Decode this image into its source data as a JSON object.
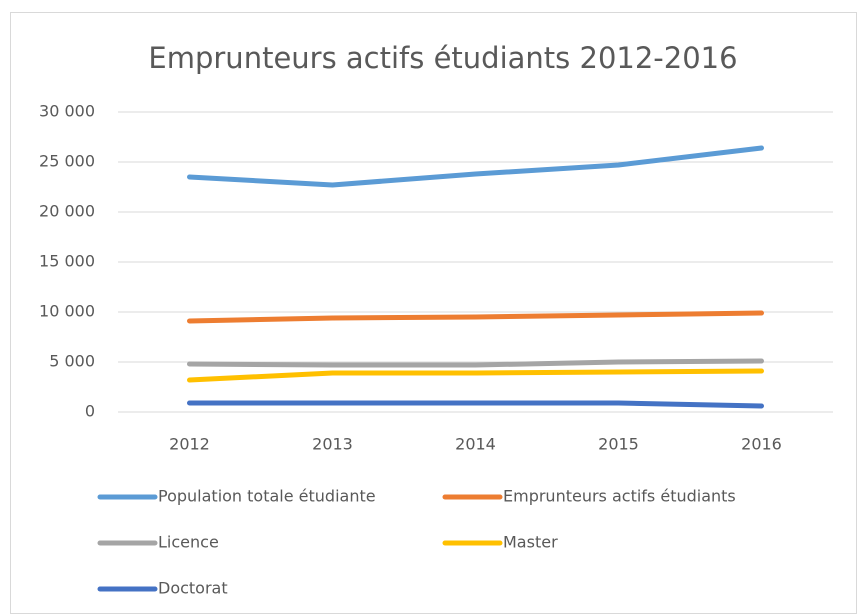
{
  "chart_data": {
    "type": "line",
    "title": "Emprunteurs actifs étudiants 2012-2016",
    "categories": [
      "2012",
      "2013",
      "2014",
      "2015",
      "2016"
    ],
    "series": [
      {
        "name": "Population totale étudiante",
        "color": "#5b9bd5",
        "values": [
          23500,
          22700,
          23800,
          24700,
          26400
        ]
      },
      {
        "name": "Emprunteurs actifs étudiants",
        "color": "#ed7d31",
        "values": [
          9100,
          9400,
          9500,
          9700,
          9900
        ]
      },
      {
        "name": "Licence",
        "color": "#a5a5a5",
        "values": [
          4800,
          4700,
          4700,
          5000,
          5100
        ]
      },
      {
        "name": "Master",
        "color": "#ffc000",
        "values": [
          3200,
          3900,
          3900,
          4000,
          4100
        ]
      },
      {
        "name": "Doctorat",
        "color": "#4472c4",
        "values": [
          900,
          900,
          900,
          900,
          600
        ]
      }
    ],
    "ylim": [
      0,
      30000
    ],
    "yticks": [
      0,
      {
        "value": 5000,
        "label": "5 000"
      },
      {
        "value": 10000,
        "label": "10 000"
      },
      {
        "value": 15000,
        "label": "15 000"
      },
      {
        "value": 20000,
        "label": "20 000"
      },
      {
        "value": 25000,
        "label": "25 000"
      },
      {
        "value": 30000,
        "label": "30 000"
      }
    ],
    "grid": true,
    "legend": "bottom"
  }
}
